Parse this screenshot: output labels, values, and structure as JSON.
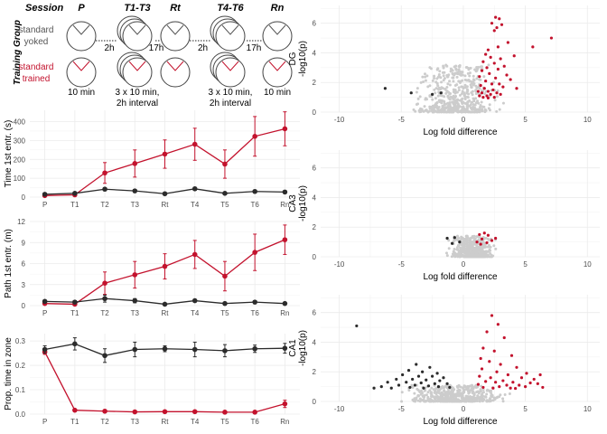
{
  "schematic": {
    "header_session": "Session",
    "header_group": "Training Group",
    "sessions": [
      "P",
      "T1-T3",
      "Rt",
      "T4-T6",
      "Rn"
    ],
    "row_yoked": [
      "standard",
      "yoked"
    ],
    "row_trained": [
      "standard",
      "trained"
    ],
    "gaps": [
      "2h",
      "17h",
      "2h",
      "17h"
    ],
    "durations": [
      [
        "10 min"
      ],
      [
        "3 x 10 min,",
        "2h interval"
      ],
      [],
      [
        "3 x 10 min,",
        "2h interval"
      ],
      [
        "10 min"
      ]
    ]
  },
  "colors": {
    "trained": "#c3122d",
    "yoked": "#2b2b2b",
    "background_points": "#cccccc",
    "grid": "#ebebeb"
  },
  "chart_data": [
    {
      "type": "line",
      "ylabel": "Time 1st entr. (s)",
      "categories": [
        "P",
        "T1",
        "T2",
        "T3",
        "Rt",
        "T4",
        "T5",
        "T6",
        "Rn"
      ],
      "ylim": [
        0,
        460
      ],
      "yticks": [
        0,
        100,
        200,
        300,
        400
      ],
      "series": [
        {
          "color": "trained",
          "values": [
            8,
            12,
            128,
            178,
            228,
            280,
            175,
            322,
            362
          ],
          "errors": [
            4,
            5,
            55,
            72,
            75,
            85,
            75,
            105,
            90
          ]
        },
        {
          "color": "yoked",
          "values": [
            15,
            20,
            42,
            33,
            18,
            44,
            20,
            30,
            27
          ],
          "errors": [
            5,
            6,
            8,
            7,
            5,
            8,
            6,
            7,
            7
          ]
        }
      ]
    },
    {
      "type": "line",
      "ylabel": "Path 1st entr. (m)",
      "categories": [
        "P",
        "T1",
        "T2",
        "T3",
        "Rt",
        "T4",
        "T5",
        "T6",
        "Rn"
      ],
      "ylim": [
        0,
        12
      ],
      "yticks": [
        0,
        3,
        6,
        9,
        12
      ],
      "series": [
        {
          "color": "trained",
          "values": [
            0.3,
            0.2,
            3.2,
            4.4,
            5.6,
            7.3,
            4.2,
            7.6,
            9.4
          ],
          "errors": [
            0.1,
            0.1,
            1.6,
            1.9,
            1.8,
            2.0,
            2.1,
            2.6,
            2.1
          ]
        },
        {
          "color": "yoked",
          "values": [
            0.6,
            0.5,
            1.0,
            0.7,
            0.2,
            0.7,
            0.3,
            0.5,
            0.3
          ],
          "errors": [
            0.2,
            0.2,
            0.5,
            0.3,
            0.1,
            0.2,
            0.1,
            0.2,
            0.1
          ]
        }
      ]
    },
    {
      "type": "line",
      "ylabel": "Prop. time in zone",
      "categories": [
        "P",
        "T1",
        "T2",
        "T3",
        "Rt",
        "T4",
        "T5",
        "T6",
        "Rn"
      ],
      "ylim": [
        0,
        0.33
      ],
      "yticks": [
        0.0,
        0.1,
        0.2,
        0.3
      ],
      "tick_labels": [
        "0.0",
        "0.1",
        "0.2",
        "0.3"
      ],
      "series": [
        {
          "color": "trained",
          "values": [
            0.255,
            0.016,
            0.012,
            0.009,
            0.01,
            0.01,
            0.008,
            0.008,
            0.042
          ],
          "errors": [
            0.01,
            0.003,
            0.003,
            0.002,
            0.002,
            0.002,
            0.002,
            0.002,
            0.015
          ]
        },
        {
          "color": "yoked",
          "values": [
            0.265,
            0.288,
            0.24,
            0.265,
            0.268,
            0.265,
            0.26,
            0.268,
            0.27
          ],
          "errors": [
            0.015,
            0.025,
            0.028,
            0.03,
            0.012,
            0.03,
            0.025,
            0.015,
            0.02
          ]
        }
      ]
    },
    {
      "type": "scatter",
      "ylabel": [
        "DG",
        "-log10(p)"
      ],
      "xlabel": "Log fold difference",
      "xlim": [
        -11.5,
        11
      ],
      "ylim": [
        0,
        7.2
      ],
      "xticks": [
        -10,
        -5,
        0,
        5,
        10
      ],
      "yticks": [
        0,
        2,
        4,
        6
      ],
      "background_x_range": [
        -6.5,
        5.5
      ],
      "background_y_max": 3.2,
      "highlighted": [
        {
          "color": "yoked",
          "points": [
            [
              -6.3,
              1.6
            ],
            [
              -4.2,
              1.3
            ],
            [
              -2.5,
              1.2
            ],
            [
              -1.8,
              1.3
            ]
          ]
        },
        {
          "color": "trained",
          "points": [
            [
              2.6,
              6.4
            ],
            [
              2.9,
              6.3
            ],
            [
              2.3,
              6.0
            ],
            [
              2.7,
              5.7
            ],
            [
              3.1,
              5.9
            ],
            [
              2.5,
              5.5
            ],
            [
              7.1,
              5.0
            ],
            [
              5.6,
              4.4
            ],
            [
              3.6,
              4.7
            ],
            [
              2.0,
              4.2
            ],
            [
              2.8,
              4.4
            ],
            [
              1.8,
              3.9
            ],
            [
              2.2,
              3.7
            ],
            [
              3.0,
              3.6
            ],
            [
              1.6,
              3.4
            ],
            [
              2.5,
              3.3
            ],
            [
              3.3,
              3.1
            ],
            [
              1.9,
              3.0
            ],
            [
              2.8,
              2.9
            ],
            [
              1.5,
              2.8
            ],
            [
              2.1,
              2.6
            ],
            [
              3.5,
              2.5
            ],
            [
              2.6,
              2.3
            ],
            [
              1.3,
              2.4
            ],
            [
              1.8,
              2.1
            ],
            [
              2.3,
              1.9
            ],
            [
              2.9,
              1.9
            ],
            [
              1.4,
              1.8
            ],
            [
              3.2,
              1.7
            ],
            [
              1.7,
              1.6
            ],
            [
              2.4,
              1.5
            ],
            [
              2.0,
              1.4
            ],
            [
              1.2,
              1.4
            ],
            [
              2.7,
              1.3
            ],
            [
              1.5,
              1.3
            ],
            [
              2.2,
              1.2
            ],
            [
              1.9,
              1.1
            ],
            [
              3.0,
              1.2
            ],
            [
              1.3,
              1.1
            ],
            [
              2.5,
              1.0
            ],
            [
              1.6,
              1.0
            ],
            [
              2.0,
              0.95
            ],
            [
              4.1,
              3.8
            ],
            [
              3.8,
              2.2
            ],
            [
              4.3,
              1.6
            ]
          ]
        }
      ]
    },
    {
      "type": "scatter",
      "ylabel": [
        "CA3",
        "-log10(p)"
      ],
      "xlabel": "Log fold difference",
      "xlim": [
        -11.5,
        11
      ],
      "ylim": [
        0,
        7.2
      ],
      "xticks": [
        -10,
        -5,
        0,
        5,
        10
      ],
      "yticks": [
        0,
        2,
        4,
        6
      ],
      "background_x_range": [
        -2.6,
        4.0
      ],
      "background_y_max": 1.4,
      "highlighted": [
        {
          "color": "yoked",
          "points": [
            [
              -1.3,
              1.25
            ],
            [
              -0.7,
              1.3
            ],
            [
              -0.3,
              1.0
            ],
            [
              -0.9,
              0.9
            ]
          ]
        },
        {
          "color": "trained",
          "points": [
            [
              1.3,
              1.5
            ],
            [
              1.7,
              1.6
            ],
            [
              2.0,
              1.45
            ],
            [
              1.5,
              1.2
            ],
            [
              2.3,
              1.1
            ],
            [
              1.1,
              1.0
            ],
            [
              1.9,
              0.95
            ],
            [
              2.6,
              1.25
            ],
            [
              1.4,
              0.85
            ]
          ]
        }
      ]
    },
    {
      "type": "scatter",
      "ylabel": [
        "CA1",
        "-log10(p)"
      ],
      "xlabel": "Log fold difference",
      "xlim": [
        -11.5,
        11
      ],
      "ylim": [
        0,
        7.2
      ],
      "xticks": [
        -10,
        -5,
        0,
        5,
        10
      ],
      "yticks": [
        0,
        2,
        4,
        6
      ],
      "background_x_range": [
        -8.0,
        6.5
      ],
      "background_y_max": 1.1,
      "highlighted": [
        {
          "color": "yoked",
          "points": [
            [
              -8.6,
              5.1
            ],
            [
              -3.8,
              2.5
            ],
            [
              -2.7,
              2.3
            ],
            [
              -4.4,
              2.1
            ],
            [
              -3.3,
              2.0
            ],
            [
              -2.1,
              1.9
            ],
            [
              -4.9,
              1.8
            ],
            [
              -3.6,
              1.7
            ],
            [
              -2.5,
              1.7
            ],
            [
              -1.6,
              1.6
            ],
            [
              -5.4,
              1.5
            ],
            [
              -4.1,
              1.5
            ],
            [
              -3.0,
              1.45
            ],
            [
              -1.9,
              1.4
            ],
            [
              -6.1,
              1.3
            ],
            [
              -4.6,
              1.3
            ],
            [
              -3.4,
              1.25
            ],
            [
              -2.3,
              1.2
            ],
            [
              -1.3,
              1.2
            ],
            [
              -5.2,
              1.1
            ],
            [
              -3.9,
              1.1
            ],
            [
              -2.8,
              1.05
            ],
            [
              -6.6,
              1.0
            ],
            [
              -4.3,
              0.95
            ],
            [
              -2.0,
              1.0
            ],
            [
              -5.8,
              0.9
            ],
            [
              -3.2,
              0.9
            ],
            [
              -1.1,
              0.95
            ],
            [
              -7.2,
              0.9
            ]
          ]
        },
        {
          "color": "trained",
          "points": [
            [
              2.3,
              5.8
            ],
            [
              2.8,
              5.2
            ],
            [
              1.9,
              4.7
            ],
            [
              3.3,
              4.3
            ],
            [
              1.6,
              3.6
            ],
            [
              2.5,
              3.4
            ],
            [
              3.9,
              3.1
            ],
            [
              1.4,
              2.9
            ],
            [
              2.1,
              2.7
            ],
            [
              3.0,
              2.5
            ],
            [
              4.3,
              2.3
            ],
            [
              1.5,
              2.2
            ],
            [
              2.7,
              2.0
            ],
            [
              5.1,
              1.9
            ],
            [
              6.2,
              1.8
            ],
            [
              3.6,
              1.8
            ],
            [
              1.3,
              1.7
            ],
            [
              2.2,
              1.6
            ],
            [
              4.7,
              1.6
            ],
            [
              5.7,
              1.5
            ],
            [
              3.2,
              1.4
            ],
            [
              1.8,
              1.35
            ],
            [
              2.6,
              1.3
            ],
            [
              4.0,
              1.3
            ],
            [
              5.4,
              1.25
            ],
            [
              6.0,
              1.2
            ],
            [
              1.2,
              1.15
            ],
            [
              3.5,
              1.1
            ],
            [
              4.5,
              1.1
            ],
            [
              2.9,
              1.0
            ],
            [
              5.0,
              1.0
            ],
            [
              1.6,
              0.95
            ],
            [
              6.4,
              0.95
            ],
            [
              3.8,
              0.9
            ],
            [
              2.4,
              0.9
            ],
            [
              4.2,
              0.88
            ]
          ]
        }
      ]
    }
  ]
}
